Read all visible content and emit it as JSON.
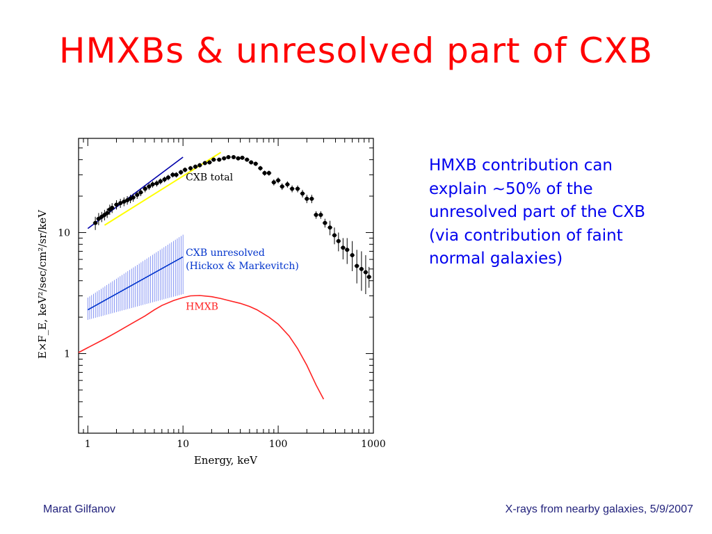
{
  "slide": {
    "title": "HMXBs & unresolved part of CXB",
    "text": "HMXB contribution can explain ~50% of the unresolved part of the CXB (via contribution of faint normal galaxies)",
    "footer_left": "Marat Gilfanov",
    "footer_right": "X-rays from nearby galaxies, 5/9/2007"
  },
  "colors": {
    "title": "#ff0000",
    "text": "#0000ee",
    "footer": "#1f1f7a",
    "hmxb": "#ff2222",
    "unresolved": "#0033cc",
    "hatch": "#6a7cf0",
    "total_fit": "#0000aa",
    "yellow_fit": "#ffff00"
  },
  "chart_data": {
    "type": "scatter",
    "xscale": "log",
    "yscale": "log",
    "xlim": [
      0.8,
      1000
    ],
    "ylim": [
      0.22,
      60
    ],
    "xticks": [
      1,
      10,
      100,
      1000
    ],
    "xtick_labels": [
      "1",
      "10",
      "100",
      "1000"
    ],
    "yticks": [
      1,
      10
    ],
    "ytick_labels": [
      "1",
      "10"
    ],
    "xlabel": "Energy,  keV",
    "ylabel": "E×F_E,  keV²/sec/cm²/sr/keV",
    "series": [
      {
        "name": "CXB total",
        "style": "points",
        "x": [
          1.2,
          1.3,
          1.4,
          1.5,
          1.6,
          1.7,
          1.8,
          2.0,
          2.2,
          2.4,
          2.6,
          2.8,
          3.0,
          3.3,
          3.6,
          4.0,
          4.4,
          4.8,
          5.3,
          5.8,
          6.4,
          7.0,
          7.8,
          8.5,
          9.5,
          10.5,
          12,
          13.5,
          15,
          17,
          19,
          21,
          24,
          27,
          30,
          34,
          38,
          42,
          47,
          52,
          58,
          65,
          72,
          80,
          90,
          100,
          110,
          125,
          140,
          160,
          180,
          200,
          225,
          250,
          280,
          310,
          350,
          390,
          430,
          480,
          530,
          600,
          670,
          750,
          830,
          900
        ],
        "y": [
          12,
          13,
          13.5,
          14,
          14.5,
          15.5,
          16,
          17,
          17.5,
          18,
          18.5,
          19,
          19.5,
          20.5,
          21.5,
          23,
          24,
          25,
          25.5,
          26.5,
          27.5,
          28.5,
          30,
          30,
          31.5,
          33,
          34,
          35,
          36,
          37.5,
          38,
          40,
          40,
          41,
          42,
          42,
          41,
          41.5,
          40,
          38,
          37,
          34,
          31,
          31,
          26,
          27,
          24,
          25,
          23,
          23,
          21,
          19,
          19,
          14,
          14,
          12,
          11,
          9.5,
          8.5,
          7.5,
          7.2,
          6.5,
          5.3,
          5,
          4.7,
          4.3
        ],
        "ylo": [
          10.5,
          11.5,
          12.2,
          12.6,
          13.2,
          14,
          14.5,
          15.5,
          16,
          16.5,
          17,
          17.5,
          18,
          19,
          20,
          21.5,
          22.5,
          23.5,
          24,
          25,
          26,
          27,
          28.5,
          28.5,
          30,
          31.5,
          32.5,
          33.5,
          34.5,
          36,
          36.5,
          38.5,
          38.5,
          39.5,
          40.5,
          40.5,
          39.5,
          40,
          38.5,
          36.5,
          35.5,
          32.5,
          29.5,
          29.5,
          24.5,
          25.5,
          22.5,
          23.5,
          21.5,
          21.5,
          19.5,
          17.5,
          17.5,
          13,
          13,
          11,
          9.5,
          8,
          7,
          6,
          5.5,
          4.8,
          3.8,
          3.3,
          3.1,
          3.5
        ],
        "yhi": [
          13.5,
          14.5,
          14.8,
          15.4,
          15.8,
          17,
          17.5,
          18.5,
          19,
          19.5,
          20,
          20.5,
          21,
          22,
          23,
          24.5,
          25.5,
          26.5,
          27,
          28,
          29,
          30,
          31.5,
          31.5,
          33,
          34.5,
          35.5,
          36.5,
          37.5,
          39,
          39.5,
          41.5,
          41.5,
          42.5,
          43.5,
          43.5,
          42.5,
          43,
          41.5,
          39.5,
          38.5,
          35.5,
          32.5,
          32.5,
          27.5,
          28.5,
          25.5,
          26.5,
          24.5,
          24.5,
          22.5,
          20.5,
          20.5,
          15,
          15,
          13,
          12.5,
          11,
          10,
          9,
          9,
          8.5,
          7.2,
          7,
          6.5,
          5.2
        ]
      },
      {
        "name": "",
        "style": "line",
        "x": [
          1.0,
          10
        ],
        "y": [
          10.8,
          42
        ]
      },
      {
        "name": "",
        "style": "line",
        "x": [
          1.5,
          25
        ],
        "y": [
          11.5,
          46
        ]
      },
      {
        "name": "CXB unresolved\n(Hickox & Markevitch)",
        "style": "line-hatched",
        "x": [
          1.0,
          10
        ],
        "y": [
          2.3,
          6.3
        ],
        "ylo": [
          1.9,
          3.1
        ],
        "yhi": [
          2.9,
          9.6
        ]
      },
      {
        "name": "HMXB",
        "style": "line",
        "x": [
          0.8,
          1,
          1.5,
          2,
          3,
          4,
          5,
          6,
          8,
          10,
          12,
          15,
          20,
          25,
          30,
          40,
          50,
          60,
          80,
          100,
          130,
          160,
          200,
          250,
          300
        ],
        "y": [
          1.02,
          1.12,
          1.32,
          1.5,
          1.8,
          2.05,
          2.3,
          2.5,
          2.75,
          2.9,
          3.0,
          3.02,
          2.95,
          2.85,
          2.75,
          2.6,
          2.45,
          2.3,
          2.0,
          1.75,
          1.4,
          1.1,
          0.8,
          0.55,
          0.42
        ]
      }
    ],
    "annotations": [
      {
        "text": "CXB total",
        "x": 10,
        "y": 27
      },
      {
        "text": "CXB unresolved",
        "x": 10,
        "y": 6.4
      },
      {
        "text": "(Hickox & Markevitch)",
        "x": 10,
        "y": 5.0
      },
      {
        "text": "HMXB",
        "x": 10,
        "y": 2.3
      }
    ]
  }
}
